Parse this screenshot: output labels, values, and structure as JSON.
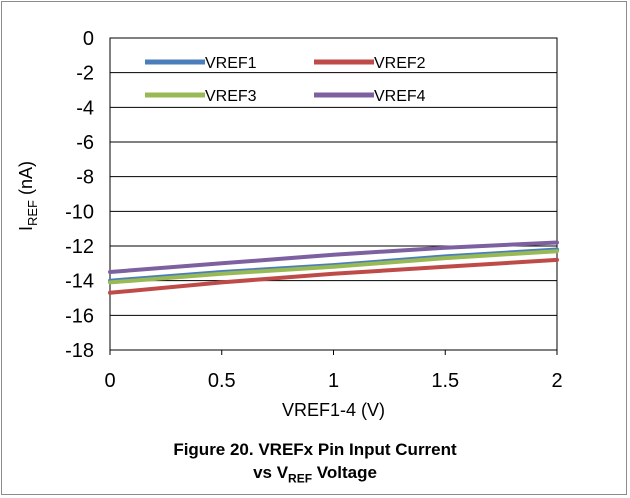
{
  "chart_data": {
    "type": "line",
    "title": "",
    "xlabel": "VREF1-4 (V)",
    "ylabel": {
      "main": "I",
      "sub": "REF",
      "unit": "(nA)"
    },
    "xlim": [
      0,
      2
    ],
    "ylim": [
      -18,
      0
    ],
    "x_ticks": [
      "0",
      "0.5",
      "1",
      "1.5",
      "2"
    ],
    "y_ticks": [
      "0",
      "-2",
      "-4",
      "-6",
      "-8",
      "-10",
      "-12",
      "-14",
      "-16",
      "-18"
    ],
    "grid": true,
    "legend_position": "top-left",
    "series": [
      {
        "name": "VREF1",
        "color": "#4a7ebb",
        "x": [
          0,
          0.5,
          1,
          1.5,
          2
        ],
        "y": [
          -14.0,
          -13.5,
          -13.1,
          -12.6,
          -12.2
        ]
      },
      {
        "name": "VREF2",
        "color": "#be4b48",
        "x": [
          0,
          0.5,
          1,
          1.5,
          2
        ],
        "y": [
          -14.7,
          -14.1,
          -13.6,
          -13.2,
          -12.8
        ]
      },
      {
        "name": "VREF3",
        "color": "#98b954",
        "x": [
          0,
          0.5,
          1,
          1.5,
          2
        ],
        "y": [
          -14.1,
          -13.6,
          -13.2,
          -12.7,
          -12.3
        ]
      },
      {
        "name": "VREF4",
        "color": "#7d60a0",
        "x": [
          0,
          0.5,
          1,
          1.5,
          2
        ],
        "y": [
          -13.5,
          -13.0,
          -12.5,
          -12.1,
          -11.8
        ]
      }
    ]
  },
  "caption": {
    "line1": "Figure 20. VREFx Pin Input Current",
    "line2_prefix": "vs V",
    "line2_sub": "REF",
    "line2_suffix": " Voltage"
  }
}
